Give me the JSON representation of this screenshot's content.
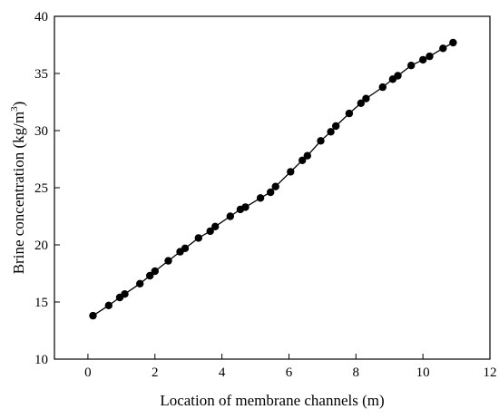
{
  "chart_data": {
    "type": "scatter",
    "xlabel": "Location of membrane channels (m)",
    "ylabel": "Brine concentration (kg/m",
    "ylabel_superscript": "3",
    "ylabel_suffix": ")",
    "xlim": [
      -1,
      12
    ],
    "ylim": [
      10,
      40
    ],
    "xticks": [
      0,
      2,
      4,
      6,
      8,
      10,
      12
    ],
    "yticks": [
      10,
      15,
      20,
      25,
      30,
      35,
      40
    ],
    "grid": false,
    "connected": true,
    "marker_color": "#000000",
    "line_color": "#000000",
    "series": [
      {
        "x": [
          0.15,
          0.62,
          0.95,
          1.1,
          1.55,
          1.85,
          2.0,
          2.4,
          2.75,
          2.9,
          3.3,
          3.65,
          3.8,
          4.25,
          4.55,
          4.7,
          5.15,
          5.45,
          5.6,
          6.05,
          6.4,
          6.55,
          6.95,
          7.25,
          7.4,
          7.8,
          8.15,
          8.3,
          8.8,
          9.1,
          9.25,
          9.65,
          10.0,
          10.2,
          10.6,
          10.9
        ],
        "y": [
          13.8,
          14.7,
          15.4,
          15.7,
          16.6,
          17.3,
          17.7,
          18.6,
          19.4,
          19.7,
          20.6,
          21.2,
          21.6,
          22.5,
          23.1,
          23.3,
          24.1,
          24.6,
          25.1,
          26.4,
          27.4,
          27.8,
          29.1,
          29.9,
          30.4,
          31.5,
          32.4,
          32.8,
          33.8,
          34.5,
          34.8,
          35.7,
          36.2,
          36.5,
          37.2,
          37.7
        ]
      }
    ]
  }
}
